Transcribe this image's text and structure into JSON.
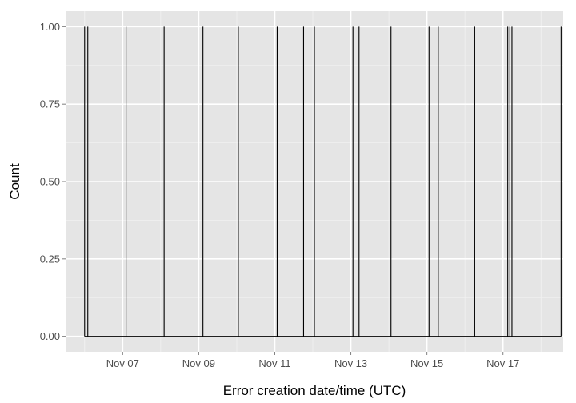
{
  "chart_data": {
    "type": "line",
    "title": "",
    "xlabel": "Error creation date/time (UTC)",
    "ylabel": "Count",
    "x_axis_type": "date",
    "xlim": [
      "2014-11-05T12:00",
      "2014-11-18T14:00"
    ],
    "ylim": [
      -0.05,
      1.05
    ],
    "y_ticks": [
      0,
      0.25,
      0.5,
      0.75,
      1
    ],
    "y_tick_labels": [
      "0.00",
      "0.25",
      "0.50",
      "0.75",
      "1.00"
    ],
    "x_ticks": [
      "2014-11-07T00:00",
      "2014-11-09T00:00",
      "2014-11-11T00:00",
      "2014-11-13T00:00",
      "2014-11-15T00:00",
      "2014-11-17T00:00"
    ],
    "x_tick_labels": [
      "Nov 07",
      "Nov 09",
      "Nov 11",
      "Nov 13",
      "Nov 15",
      "Nov 17"
    ],
    "grid": true,
    "background": "#e5e5e5",
    "grid_major_color": "#ffffff",
    "grid_minor_color": "#f2f2f2",
    "line_color": "#000000",
    "events": [
      "2014-11-06T00:00",
      "2014-11-06T02:00",
      "2014-11-07T02:10",
      "2014-11-08T02:10",
      "2014-11-09T02:40",
      "2014-11-10T01:00",
      "2014-11-11T01:30",
      "2014-11-11T18:10",
      "2014-11-12T01:00",
      "2014-11-13T01:20",
      "2014-11-13T05:10",
      "2014-11-14T01:20",
      "2014-11-15T01:20",
      "2014-11-15T07:10",
      "2014-11-16T06:10",
      "2014-11-17T03:00",
      "2014-11-17T04:20",
      "2014-11-17T05:40",
      "2014-11-18T12:40"
    ],
    "event_value": 1,
    "baseline_value": 0
  }
}
